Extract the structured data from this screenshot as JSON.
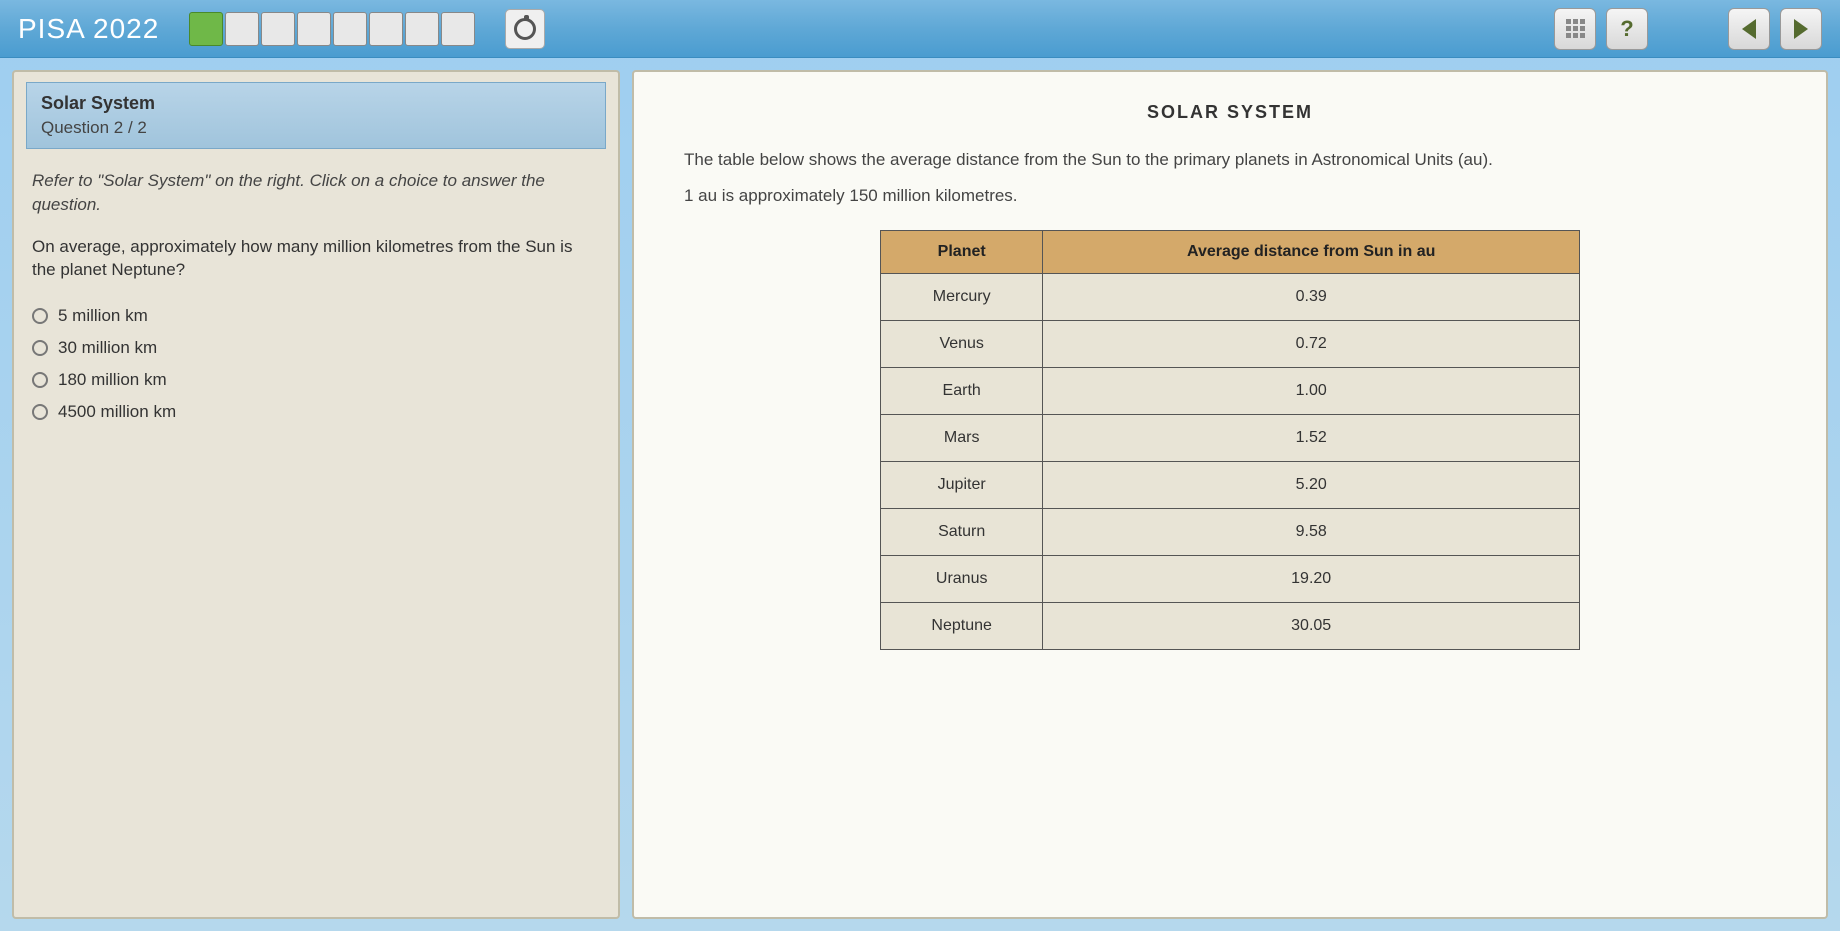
{
  "app": {
    "title": "PISA 2022"
  },
  "progress": {
    "total_boxes": 8,
    "active_index": 0,
    "active_color": "#6fb848",
    "inactive_color": "#e8e8e8"
  },
  "help_label": "?",
  "question": {
    "topic": "Solar System",
    "counter": "Question 2 / 2",
    "instruction": "Refer to \"Solar System\" on the right. Click on a choice to answer the question.",
    "prompt": "On average, approximately how many million kilometres from the Sun is the planet Neptune?",
    "choices": [
      "5 million km",
      "30 million km",
      "180 million km",
      "4500 million km"
    ]
  },
  "stimulus": {
    "title": "SOLAR SYSTEM",
    "intro": "The table below shows the average distance from the Sun to the primary planets in Astronomical Units (au).",
    "note": "1 au is approximately 150 million kilometres.",
    "table": {
      "header_bg": "#d4a96a",
      "cell_bg": "#e8e4d6",
      "border_color": "#555555",
      "columns": [
        "Planet",
        "Average distance from Sun in au"
      ],
      "rows": [
        [
          "Mercury",
          "0.39"
        ],
        [
          "Venus",
          "0.72"
        ],
        [
          "Earth",
          "1.00"
        ],
        [
          "Mars",
          "1.52"
        ],
        [
          "Jupiter",
          "5.20"
        ],
        [
          "Saturn",
          "9.58"
        ],
        [
          "Uranus",
          "19.20"
        ],
        [
          "Neptune",
          "30.05"
        ]
      ]
    }
  },
  "colors": {
    "topbar_gradient_start": "#7ab8e0",
    "topbar_gradient_end": "#4a9cd0",
    "left_panel_bg": "#e8e4d8",
    "right_panel_bg": "#fafaf5",
    "question_header_bg": "#a8cce0"
  }
}
